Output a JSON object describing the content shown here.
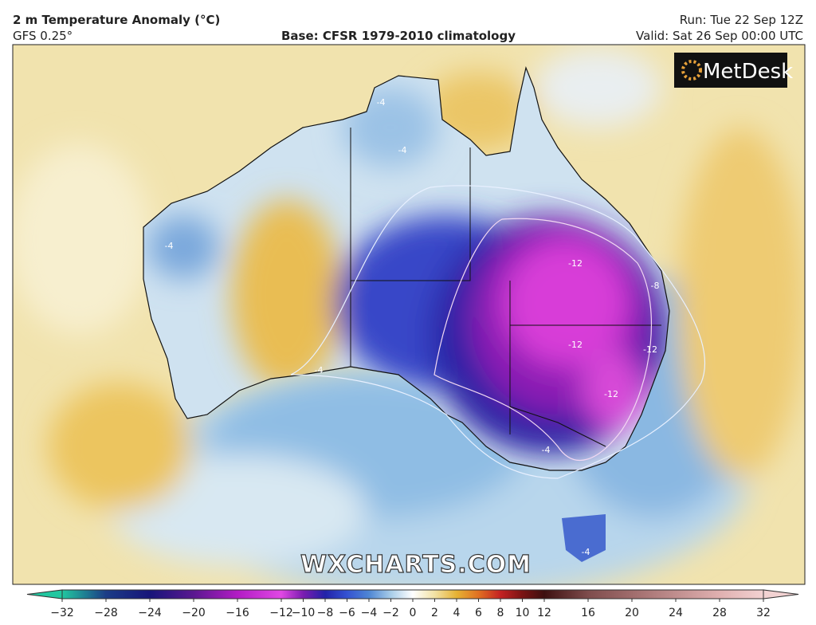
{
  "header": {
    "title": "2 m Temperature Anomaly (°C)",
    "model": "GFS 0.25°",
    "base": "Base: CFSR 1979-2010 climatology",
    "run": "Run: Tue 22 Sep 12Z",
    "valid": "Valid: Sat 26 Sep 00:00 UTC"
  },
  "logo": "MetDesk",
  "watermark": "WXCHARTS.COM",
  "contour_labels": [
    "-4",
    "-4",
    "-4",
    "-4",
    "-4",
    "-4",
    "-8",
    "-12",
    "-12",
    "-12",
    "-12"
  ],
  "colorbar": {
    "ticks": [
      {
        "value": -32,
        "label": "−32"
      },
      {
        "value": -28,
        "label": "−28"
      },
      {
        "value": -24,
        "label": "−24"
      },
      {
        "value": -20,
        "label": "−20"
      },
      {
        "value": -16,
        "label": "−16"
      },
      {
        "value": -12,
        "label": "−12"
      },
      {
        "value": -10,
        "label": "−10"
      },
      {
        "value": -8,
        "label": "−8"
      },
      {
        "value": -6,
        "label": "−6"
      },
      {
        "value": -4,
        "label": "−4"
      },
      {
        "value": -2,
        "label": "−2"
      },
      0,
      2,
      4,
      6,
      8,
      10,
      12,
      16,
      20,
      24,
      28,
      32
    ],
    "colors": [
      "#22c7a0",
      "#1b3c86",
      "#17157a",
      "#5a1890",
      "#b21cc4",
      "#e048e4",
      "#7a1cb0",
      "#2222a8",
      "#3452d2",
      "#4e86d4",
      "#a8cce8",
      "#ffffff",
      "#f2e2a4",
      "#e6b234",
      "#e07022",
      "#c42222",
      "#7a1414",
      "#3e1010",
      "#7e4c4c",
      "#a06c6c",
      "#c08e8e",
      "#e0b0b0",
      "#f2d2d2"
    ]
  }
}
